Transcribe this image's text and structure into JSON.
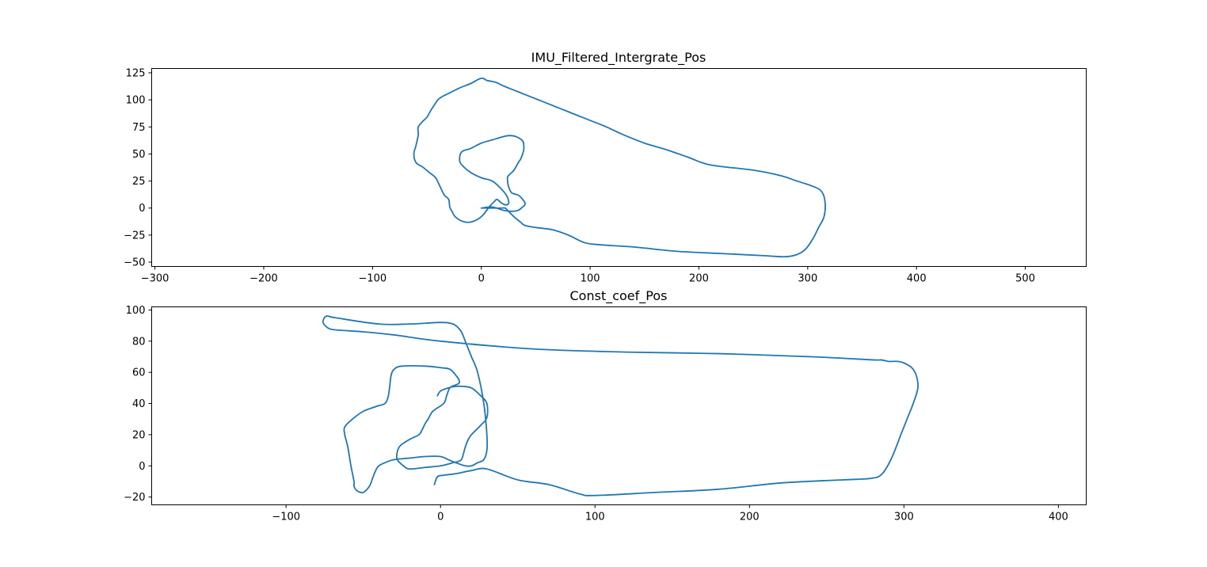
{
  "chart_data": [
    {
      "type": "line",
      "title": "IMU_Filtered_Intergrate_Pos",
      "xlabel": "",
      "ylabel": "",
      "xlim": [
        -303,
        556
      ],
      "ylim": [
        -54,
        129
      ],
      "xticks": [
        -300,
        -200,
        -100,
        0,
        100,
        200,
        300,
        400,
        500
      ],
      "yticks": [
        -50,
        -25,
        0,
        25,
        50,
        75,
        100,
        125
      ],
      "grid": false,
      "color": "#1f77b4",
      "series": [
        {
          "x": [
            0,
            10,
            18,
            22,
            24,
            26,
            30,
            36,
            40,
            50,
            65,
            80,
            95,
            110,
            140,
            180,
            220,
            260,
            279,
            290,
            298,
            305,
            310,
            315,
            316,
            313,
            305,
            290,
            275,
            250,
            210,
            190,
            170,
            150,
            130,
            115,
            100,
            90,
            80,
            70,
            60,
            50,
            40,
            30,
            25,
            20,
            18,
            16,
            14,
            10,
            5,
            0,
            -10,
            -20,
            -30,
            -36,
            -40,
            -42,
            -44,
            -46,
            -50,
            -54,
            -58,
            -58,
            -58,
            -60,
            -62,
            -60,
            -54,
            -48,
            -42,
            -38,
            -34,
            -30,
            -29,
            -27,
            -24,
            -18,
            -10,
            0,
            8,
            12,
            14,
            16,
            18,
            22,
            25,
            25,
            23,
            18,
            10,
            0,
            -10,
            -18,
            -20,
            -18,
            -10,
            0,
            10,
            20,
            26,
            32,
            38,
            39,
            39,
            38,
            36,
            34,
            30,
            27,
            25,
            24,
            25,
            28,
            34,
            38,
            40,
            40,
            38,
            34,
            28,
            20,
            10,
            0
          ],
          "y": [
            0,
            0,
            0,
            0,
            -2,
            -4,
            -8,
            -13,
            -16,
            -18,
            -20,
            -25,
            -32,
            -34,
            -36,
            -40,
            -42,
            -44,
            -45,
            -43,
            -38,
            -28,
            -18,
            -8,
            5,
            15,
            20,
            25,
            30,
            35,
            40,
            47,
            54,
            60,
            68,
            75,
            81,
            85,
            89,
            93,
            97,
            101,
            105,
            109,
            111,
            113,
            114,
            115,
            116,
            117,
            118,
            120,
            115,
            111,
            106,
            103,
            100,
            97,
            94,
            91,
            84,
            80,
            75,
            70,
            67,
            58,
            50,
            42,
            38,
            33,
            28,
            20,
            12,
            8,
            1,
            -3,
            -8,
            -12,
            -13,
            -8,
            2,
            6,
            8,
            7,
            5,
            3,
            4,
            7,
            12,
            18,
            25,
            28,
            33,
            40,
            45,
            52,
            55,
            60,
            63,
            66,
            67,
            66,
            62,
            58,
            54,
            50,
            45,
            42,
            35,
            32,
            30,
            28,
            20,
            14,
            12,
            8,
            5,
            3,
            1,
            -2,
            -3,
            -2,
            1,
            0
          ]
        }
      ]
    },
    {
      "type": "line",
      "title": "Const_coef_Pos",
      "xlabel": "",
      "ylabel": "",
      "xlim": [
        -187,
        418
      ],
      "ylim": [
        -25,
        102
      ],
      "xticks": [
        -100,
        0,
        100,
        200,
        300,
        400
      ],
      "yticks": [
        -20,
        0,
        20,
        40,
        60,
        80,
        100
      ],
      "grid": false,
      "color": "#1f77b4",
      "series": [
        {
          "x": [
            -4,
            -2,
            2,
            10,
            20,
            30,
            50,
            70,
            90,
            100,
            140,
            180,
            220,
            260,
            279,
            286,
            292,
            298,
            302,
            306,
            309,
            308,
            305,
            300,
            296,
            292,
            290,
            285,
            280,
            240,
            180,
            120,
            60,
            0,
            -30,
            -50,
            -65,
            -72,
            -76,
            -74,
            -68,
            -40,
            -20,
            0,
            8,
            12,
            14,
            16,
            18,
            20,
            24,
            28,
            30,
            30,
            28,
            24,
            20,
            16,
            10,
            5,
            0,
            -10,
            -20,
            -30,
            -36,
            -40,
            -42,
            -44,
            -46,
            -50,
            -54,
            -56,
            -56,
            -58,
            -60,
            -62,
            -62,
            -57,
            -50,
            -42,
            -36,
            -34,
            -33,
            -32,
            -30,
            -25,
            -10,
            0,
            6,
            10,
            12,
            12,
            10,
            6,
            4,
            2,
            -5,
            -8,
            -10,
            -12,
            -14,
            -20,
            -26,
            -28,
            -28,
            -24,
            -20,
            -10,
            0,
            8,
            12,
            14,
            16,
            18,
            20,
            26,
            30,
            30,
            26,
            20,
            14,
            10,
            5,
            0,
            -2
          ],
          "y": [
            -12,
            -7,
            -6,
            -5,
            -3,
            -2,
            -9,
            -12,
            -18,
            -19,
            -17,
            -15,
            -11,
            -9,
            -8,
            -5,
            5,
            20,
            30,
            40,
            50,
            58,
            63,
            66,
            67,
            67,
            67,
            68,
            68,
            70,
            72,
            73,
            75,
            80,
            84,
            86,
            87,
            88,
            92,
            96,
            95,
            91,
            91,
            92,
            91,
            88,
            85,
            80,
            75,
            70,
            60,
            40,
            20,
            10,
            4,
            2,
            0,
            0,
            2,
            4,
            6,
            6,
            5,
            4,
            2,
            0,
            -3,
            -8,
            -13,
            -17,
            -16,
            -13,
            -10,
            0,
            12,
            20,
            25,
            30,
            35,
            38,
            40,
            44,
            50,
            58,
            62,
            64,
            64,
            63,
            62,
            58,
            55,
            53,
            52,
            50,
            45,
            40,
            35,
            30,
            27,
            23,
            20,
            17,
            13,
            9,
            4,
            0,
            -2,
            -1,
            0,
            2,
            3,
            5,
            12,
            17,
            20,
            26,
            31,
            40,
            45,
            50,
            51,
            51,
            50,
            48,
            45
          ]
        }
      ]
    }
  ]
}
